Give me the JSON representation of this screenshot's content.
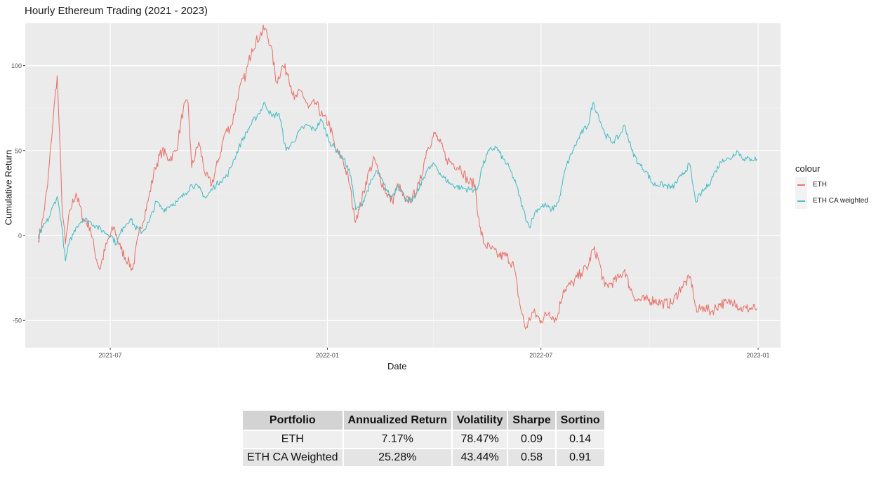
{
  "colors": {
    "eth": "#E8776F",
    "eth_ca": "#4FBEC6",
    "panel": "#EBEBEB",
    "grid": "#FFFFFF"
  },
  "chart_data": {
    "type": "line",
    "title": "Hourly Ethereum Trading (2021 - 2023)",
    "xlabel": "Date",
    "ylabel": "Cumulative Return",
    "xlim": [
      "2021-04-20",
      "2023-01-20"
    ],
    "ylim": [
      -66,
      125
    ],
    "grid": true,
    "x_ticks": [
      "2021-07",
      "2022-01",
      "2022-07",
      "2023-01"
    ],
    "y_ticks": [
      100,
      50,
      0,
      -50
    ],
    "y_tick_labels": [
      "100",
      "50",
      "0",
      "-50"
    ],
    "legend": {
      "title": "colour",
      "position": "right",
      "entries": [
        "ETH",
        "ETH CA weighted"
      ]
    },
    "series": [
      {
        "name": "ETH",
        "color": "#E8776F",
        "points": [
          [
            "2021-05-01",
            -3
          ],
          [
            "2021-05-05",
            10
          ],
          [
            "2021-05-09",
            30
          ],
          [
            "2021-05-12",
            55
          ],
          [
            "2021-05-15",
            80
          ],
          [
            "2021-05-17",
            94
          ],
          [
            "2021-05-19",
            60
          ],
          [
            "2021-05-21",
            20
          ],
          [
            "2021-05-24",
            -5
          ],
          [
            "2021-05-28",
            15
          ],
          [
            "2021-06-02",
            25
          ],
          [
            "2021-06-08",
            10
          ],
          [
            "2021-06-14",
            5
          ],
          [
            "2021-06-18",
            -10
          ],
          [
            "2021-06-22",
            -20
          ],
          [
            "2021-06-28",
            -5
          ],
          [
            "2021-07-04",
            5
          ],
          [
            "2021-07-10",
            -8
          ],
          [
            "2021-07-16",
            -15
          ],
          [
            "2021-07-20",
            -20
          ],
          [
            "2021-07-25",
            0
          ],
          [
            "2021-08-02",
            20
          ],
          [
            "2021-08-08",
            40
          ],
          [
            "2021-08-14",
            50
          ],
          [
            "2021-08-20",
            45
          ],
          [
            "2021-08-26",
            50
          ],
          [
            "2021-09-01",
            75
          ],
          [
            "2021-09-05",
            78
          ],
          [
            "2021-09-08",
            40
          ],
          [
            "2021-09-14",
            55
          ],
          [
            "2021-09-20",
            35
          ],
          [
            "2021-09-25",
            30
          ],
          [
            "2021-10-01",
            45
          ],
          [
            "2021-10-06",
            60
          ],
          [
            "2021-10-12",
            65
          ],
          [
            "2021-10-18",
            85
          ],
          [
            "2021-10-24",
            95
          ],
          [
            "2021-10-29",
            110
          ],
          [
            "2021-11-05",
            118
          ],
          [
            "2021-11-09",
            122
          ],
          [
            "2021-11-14",
            112
          ],
          [
            "2021-11-19",
            90
          ],
          [
            "2021-11-24",
            100
          ],
          [
            "2021-11-29",
            95
          ],
          [
            "2021-12-04",
            80
          ],
          [
            "2021-12-10",
            85
          ],
          [
            "2021-12-16",
            75
          ],
          [
            "2021-12-22",
            78
          ],
          [
            "2021-12-28",
            70
          ],
          [
            "2022-01-03",
            65
          ],
          [
            "2022-01-08",
            50
          ],
          [
            "2022-01-14",
            45
          ],
          [
            "2022-01-20",
            30
          ],
          [
            "2022-01-24",
            10
          ],
          [
            "2022-01-28",
            15
          ],
          [
            "2022-02-04",
            35
          ],
          [
            "2022-02-10",
            45
          ],
          [
            "2022-02-14",
            35
          ],
          [
            "2022-02-20",
            25
          ],
          [
            "2022-02-25",
            20
          ],
          [
            "2022-03-02",
            30
          ],
          [
            "2022-03-08",
            20
          ],
          [
            "2022-03-14",
            22
          ],
          [
            "2022-03-20",
            30
          ],
          [
            "2022-03-26",
            50
          ],
          [
            "2022-04-02",
            60
          ],
          [
            "2022-04-06",
            55
          ],
          [
            "2022-04-12",
            45
          ],
          [
            "2022-04-18",
            42
          ],
          [
            "2022-04-24",
            40
          ],
          [
            "2022-04-30",
            32
          ],
          [
            "2022-05-06",
            30
          ],
          [
            "2022-05-10",
            5
          ],
          [
            "2022-05-14",
            -5
          ],
          [
            "2022-05-20",
            -8
          ],
          [
            "2022-05-26",
            -12
          ],
          [
            "2022-06-02",
            -12
          ],
          [
            "2022-06-08",
            -18
          ],
          [
            "2022-06-13",
            -40
          ],
          [
            "2022-06-18",
            -55
          ],
          [
            "2022-06-24",
            -45
          ],
          [
            "2022-07-01",
            -50
          ],
          [
            "2022-07-08",
            -45
          ],
          [
            "2022-07-14",
            -50
          ],
          [
            "2022-07-20",
            -32
          ],
          [
            "2022-07-28",
            -28
          ],
          [
            "2022-08-04",
            -22
          ],
          [
            "2022-08-10",
            -18
          ],
          [
            "2022-08-14",
            -8
          ],
          [
            "2022-08-18",
            -12
          ],
          [
            "2022-08-24",
            -30
          ],
          [
            "2022-08-30",
            -28
          ],
          [
            "2022-09-05",
            -25
          ],
          [
            "2022-09-10",
            -20
          ],
          [
            "2022-09-14",
            -30
          ],
          [
            "2022-09-20",
            -38
          ],
          [
            "2022-09-28",
            -38
          ],
          [
            "2022-10-05",
            -38
          ],
          [
            "2022-10-12",
            -40
          ],
          [
            "2022-10-20",
            -40
          ],
          [
            "2022-10-28",
            -30
          ],
          [
            "2022-11-05",
            -25
          ],
          [
            "2022-11-08",
            -38
          ],
          [
            "2022-11-10",
            -45
          ],
          [
            "2022-11-16",
            -42
          ],
          [
            "2022-11-22",
            -45
          ],
          [
            "2022-11-30",
            -40
          ],
          [
            "2022-12-06",
            -40
          ],
          [
            "2022-12-12",
            -38
          ],
          [
            "2022-12-16",
            -43
          ],
          [
            "2022-12-22",
            -43
          ],
          [
            "2022-12-31",
            -43
          ]
        ]
      },
      {
        "name": "ETH CA weighted",
        "color": "#4FBEC6",
        "points": [
          [
            "2021-05-01",
            -2
          ],
          [
            "2021-05-05",
            5
          ],
          [
            "2021-05-10",
            10
          ],
          [
            "2021-05-14",
            18
          ],
          [
            "2021-05-17",
            23
          ],
          [
            "2021-05-19",
            15
          ],
          [
            "2021-05-21",
            5
          ],
          [
            "2021-05-24",
            -15
          ],
          [
            "2021-05-27",
            -5
          ],
          [
            "2021-06-02",
            5
          ],
          [
            "2021-06-08",
            10
          ],
          [
            "2021-06-14",
            8
          ],
          [
            "2021-06-20",
            5
          ],
          [
            "2021-06-26",
            2
          ],
          [
            "2021-07-02",
            0
          ],
          [
            "2021-07-06",
            -5
          ],
          [
            "2021-07-12",
            5
          ],
          [
            "2021-07-18",
            10
          ],
          [
            "2021-07-22",
            5
          ],
          [
            "2021-07-28",
            2
          ],
          [
            "2021-08-03",
            8
          ],
          [
            "2021-08-09",
            20
          ],
          [
            "2021-08-15",
            15
          ],
          [
            "2021-08-21",
            18
          ],
          [
            "2021-08-27",
            20
          ],
          [
            "2021-09-03",
            25
          ],
          [
            "2021-09-08",
            30
          ],
          [
            "2021-09-14",
            28
          ],
          [
            "2021-09-20",
            22
          ],
          [
            "2021-09-26",
            28
          ],
          [
            "2021-10-02",
            32
          ],
          [
            "2021-10-08",
            35
          ],
          [
            "2021-10-14",
            45
          ],
          [
            "2021-10-20",
            55
          ],
          [
            "2021-10-28",
            65
          ],
          [
            "2021-11-04",
            72
          ],
          [
            "2021-11-09",
            78
          ],
          [
            "2021-11-15",
            70
          ],
          [
            "2021-11-21",
            72
          ],
          [
            "2021-11-27",
            50
          ],
          [
            "2021-12-03",
            55
          ],
          [
            "2021-12-09",
            62
          ],
          [
            "2021-12-15",
            65
          ],
          [
            "2021-12-21",
            62
          ],
          [
            "2021-12-27",
            68
          ],
          [
            "2022-01-03",
            55
          ],
          [
            "2022-01-09",
            50
          ],
          [
            "2022-01-15",
            45
          ],
          [
            "2022-01-21",
            35
          ],
          [
            "2022-01-25",
            15
          ],
          [
            "2022-01-30",
            18
          ],
          [
            "2022-02-06",
            30
          ],
          [
            "2022-02-12",
            38
          ],
          [
            "2022-02-18",
            30
          ],
          [
            "2022-02-24",
            22
          ],
          [
            "2022-03-02",
            30
          ],
          [
            "2022-03-08",
            22
          ],
          [
            "2022-03-14",
            20
          ],
          [
            "2022-03-20",
            28
          ],
          [
            "2022-03-26",
            38
          ],
          [
            "2022-04-02",
            42
          ],
          [
            "2022-04-08",
            35
          ],
          [
            "2022-04-16",
            30
          ],
          [
            "2022-04-24",
            28
          ],
          [
            "2022-05-02",
            27
          ],
          [
            "2022-05-08",
            27
          ],
          [
            "2022-05-12",
            40
          ],
          [
            "2022-05-18",
            50
          ],
          [
            "2022-05-24",
            52
          ],
          [
            "2022-05-30",
            45
          ],
          [
            "2022-06-04",
            40
          ],
          [
            "2022-06-10",
            30
          ],
          [
            "2022-06-16",
            15
          ],
          [
            "2022-06-21",
            5
          ],
          [
            "2022-06-27",
            15
          ],
          [
            "2022-07-04",
            18
          ],
          [
            "2022-07-10",
            15
          ],
          [
            "2022-07-16",
            20
          ],
          [
            "2022-07-22",
            40
          ],
          [
            "2022-07-28",
            50
          ],
          [
            "2022-08-04",
            60
          ],
          [
            "2022-08-10",
            65
          ],
          [
            "2022-08-14",
            78
          ],
          [
            "2022-08-18",
            72
          ],
          [
            "2022-08-24",
            60
          ],
          [
            "2022-08-30",
            55
          ],
          [
            "2022-09-05",
            58
          ],
          [
            "2022-09-10",
            65
          ],
          [
            "2022-09-16",
            50
          ],
          [
            "2022-09-22",
            42
          ],
          [
            "2022-09-28",
            38
          ],
          [
            "2022-10-04",
            30
          ],
          [
            "2022-10-12",
            30
          ],
          [
            "2022-10-20",
            28
          ],
          [
            "2022-10-28",
            35
          ],
          [
            "2022-11-04",
            42
          ],
          [
            "2022-11-09",
            20
          ],
          [
            "2022-11-14",
            25
          ],
          [
            "2022-11-20",
            30
          ],
          [
            "2022-11-26",
            38
          ],
          [
            "2022-12-02",
            45
          ],
          [
            "2022-12-08",
            45
          ],
          [
            "2022-12-14",
            50
          ],
          [
            "2022-12-20",
            45
          ],
          [
            "2022-12-26",
            45
          ],
          [
            "2022-12-31",
            45
          ]
        ]
      }
    ]
  },
  "table": {
    "headers": [
      "Portfolio",
      "Annualized Return",
      "Volatility",
      "Sharpe",
      "Sortino"
    ],
    "rows": [
      [
        "ETH",
        "7.17%",
        "78.47%",
        "0.09",
        "0.14"
      ],
      [
        "ETH CA Weighted",
        "25.28%",
        "43.44%",
        "0.58",
        "0.91"
      ]
    ]
  }
}
